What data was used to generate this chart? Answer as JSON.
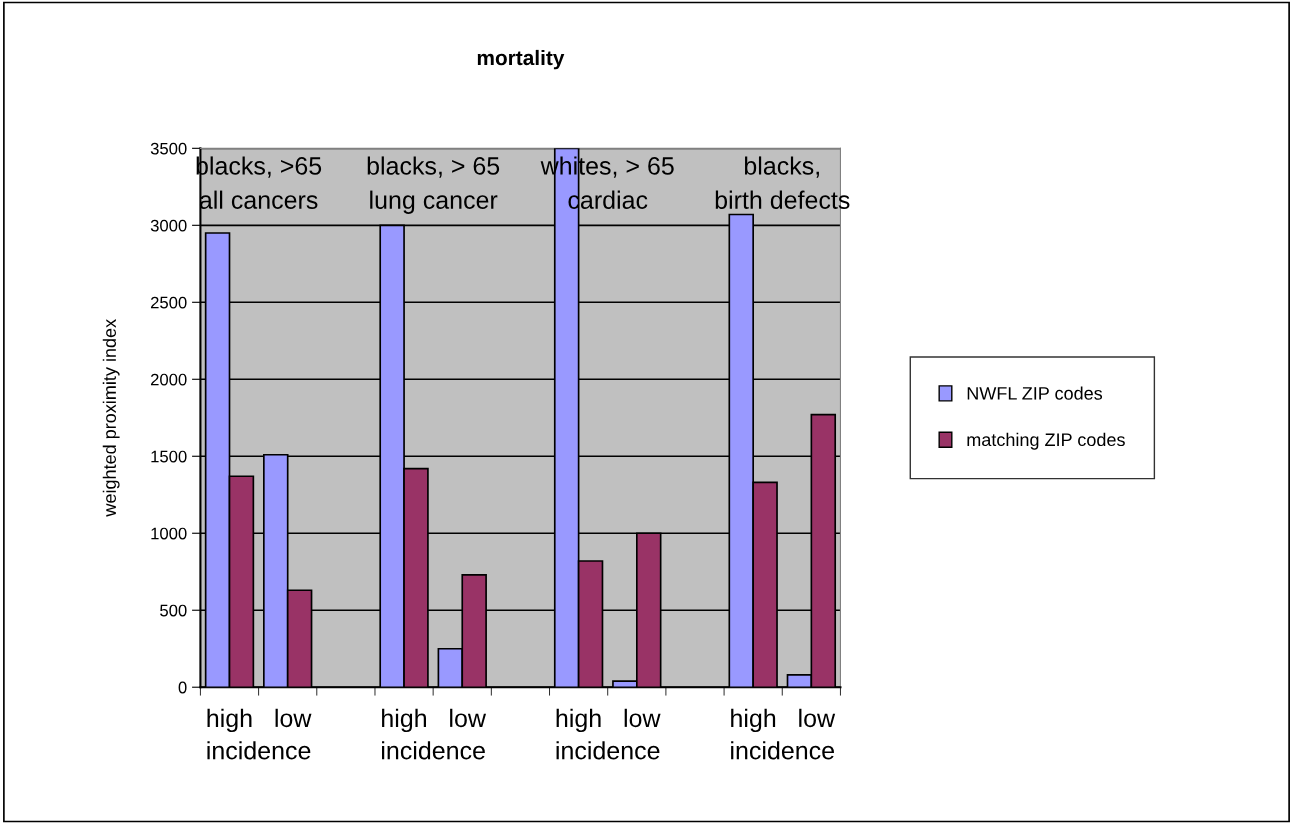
{
  "chart_data": {
    "type": "bar",
    "title": "mortality",
    "ylabel": "weighted proximity index",
    "categories": [
      null,
      null,
      null,
      null,
      null,
      null,
      null,
      null,
      null,
      null,
      null
    ],
    "series": [
      {
        "name": "NWFL ZIP codes",
        "color": "#9999ff",
        "values": [
          2950,
          1510,
          null,
          3000,
          250,
          null,
          3500,
          40,
          null,
          3070,
          80
        ]
      },
      {
        "name": "matching ZIP codes",
        "color": "#993366",
        "values": [
          1370,
          630,
          null,
          1420,
          730,
          null,
          820,
          1000,
          null,
          1330,
          1770
        ]
      }
    ],
    "ylim": [
      0,
      3500
    ],
    "yticks": [
      0,
      500,
      1000,
      1500,
      2000,
      2500,
      3000,
      3500
    ],
    "grid": "y",
    "legend": "right",
    "annotations": [
      "blacks, >65\nall cancers",
      "blacks, > 65\nlung cancer",
      "whites, > 65\ncardiac",
      "blacks,\nbirth defects",
      "high   low\nincidence",
      "high   low\nincidence",
      "high   low\nincidence",
      "high   low\nincidence"
    ]
  }
}
